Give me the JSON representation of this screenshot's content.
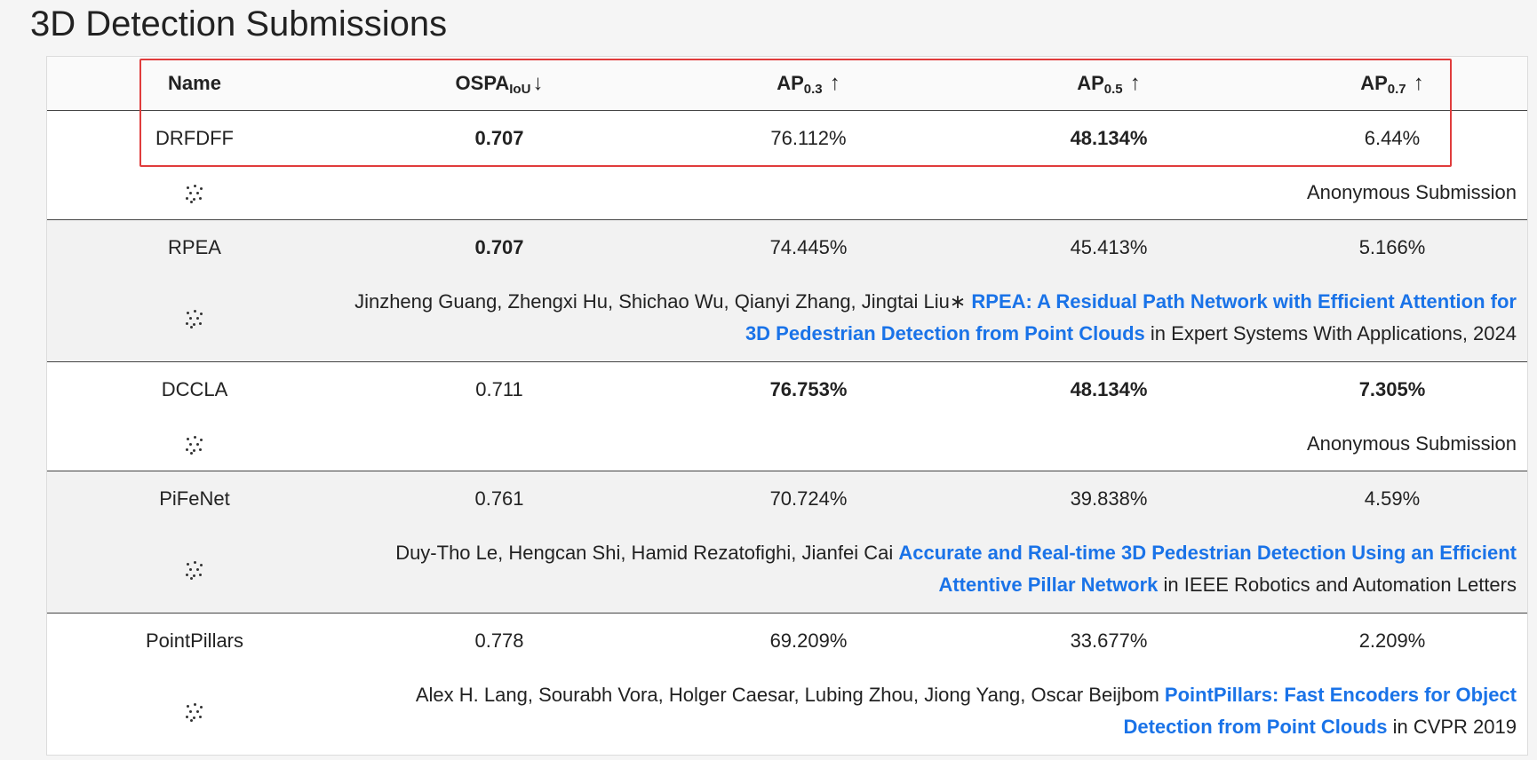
{
  "page_title": "3D Detection Submissions",
  "header": {
    "name": "Name",
    "ospa": {
      "base": "OSPA",
      "sub": "IoU",
      "arrow": "↓"
    },
    "ap3": {
      "base": "AP",
      "sub": "0.3",
      "arrow": "↑"
    },
    "ap5": {
      "base": "AP",
      "sub": "0.5",
      "arrow": "↑"
    },
    "ap7": {
      "base": "AP",
      "sub": "0.7",
      "arrow": "↑"
    }
  },
  "rows": [
    {
      "name": "DRFDFF",
      "ospa": "0.707",
      "ap3": "76.112%",
      "ap5": "48.134%",
      "ap7": "6.44%",
      "icon": "scatter-dots-icon",
      "detail": {
        "authors": "Anonymous Submission",
        "title": "",
        "venue": ""
      }
    },
    {
      "name": "RPEA",
      "ospa": "0.707",
      "ap3": "74.445%",
      "ap5": "45.413%",
      "ap7": "5.166%",
      "icon": "scatter-dots-icon",
      "detail": {
        "authors": "Jinzheng Guang, Zhengxi Hu, Shichao Wu, Qianyi Zhang, Jingtai Liu∗",
        "title": "RPEA: A Residual Path Network with Efficient Attention for 3D Pedestrian Detection from Point Clouds",
        "venue": "in Expert Systems With Applications, 2024"
      }
    },
    {
      "name": "DCCLA",
      "ospa": "0.711",
      "ap3": "76.753%",
      "ap5": "48.134%",
      "ap7": "7.305%",
      "icon": "scatter-dots-icon",
      "detail": {
        "authors": "Anonymous Submission",
        "title": "",
        "venue": ""
      }
    },
    {
      "name": "PiFeNet",
      "ospa": "0.761",
      "ap3": "70.724%",
      "ap5": "39.838%",
      "ap7": "4.59%",
      "icon": "scatter-dots-icon",
      "detail": {
        "authors": "Duy-Tho Le, Hengcan Shi, Hamid Rezatofighi, Jianfei Cai",
        "title": "Accurate and Real-time 3D Pedestrian Detection Using an Efficient Attentive Pillar Network",
        "venue": "in IEEE Robotics and Automation Letters"
      }
    },
    {
      "name": "PointPillars",
      "ospa": "0.778",
      "ap3": "69.209%",
      "ap5": "33.677%",
      "ap7": "2.209%",
      "icon": "scatter-dots-icon",
      "detail": {
        "authors": "Alex H. Lang, Sourabh Vora, Holger Caesar, Lubing Zhou, Jiong Yang, Oscar Beijbom",
        "title": "PointPillars: Fast Encoders for Object Detection from Point Clouds",
        "venue": "in CVPR 2019"
      }
    }
  ],
  "colors": {
    "link": "#1a73e8",
    "highlight": "#e03c3c",
    "shade": "#f2f2f2"
  }
}
